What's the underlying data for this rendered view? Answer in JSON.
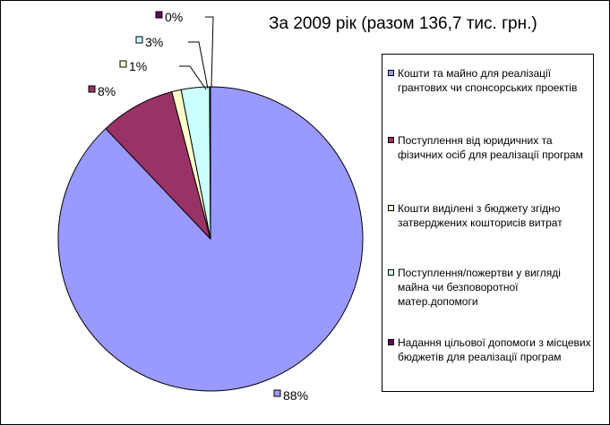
{
  "chart_data": {
    "type": "pie",
    "title": "За 2009 рік (разом 136,7 тис. грн.)",
    "slices": [
      {
        "name": "Кошти та майно для реалізації грантових чи спонсорських проектів",
        "value": 88,
        "label": "88%",
        "color": "#9999FF"
      },
      {
        "name": "Поступлення від юридичних та фізичних осіб для реалізації програм",
        "value": 8,
        "label": "8%",
        "color": "#993366"
      },
      {
        "name": "Кошти виділені з бюджету згідно затверджених кошторисів витрат",
        "value": 1,
        "label": "1%",
        "color": "#FFFFCC"
      },
      {
        "name": "Поступлення/пожертви у вигляді майна чи безповоротної матер.допомоги",
        "value": 3,
        "label": "3%",
        "color": "#CCFFFF"
      },
      {
        "name": "Надання цільової допомоги з місцевих бюджетів для реалізації програм",
        "value": 0,
        "label": "0%",
        "color": "#660066"
      }
    ],
    "legend_position": "right"
  }
}
